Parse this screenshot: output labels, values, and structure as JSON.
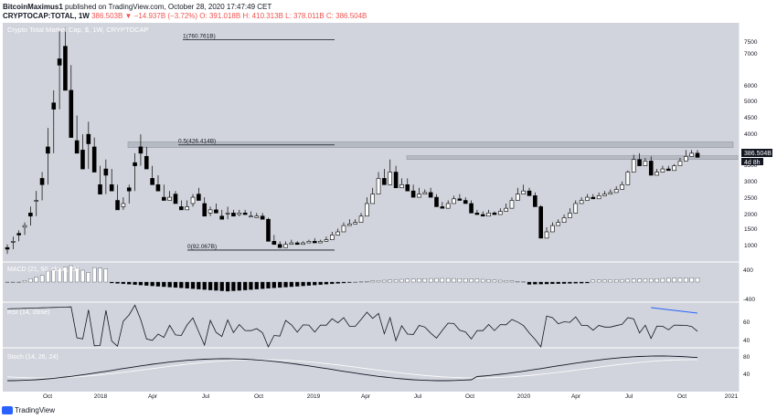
{
  "header": {
    "user": "BitcoinMaximus1",
    "published": "published on TradingView.com, October 28, 2020 17:47:49 CET",
    "symbol": "CRYPTOCAP:TOTAL, 1W",
    "change": "386.503B ▼ −14.937B (−3.72%)",
    "ohlc": "O: 391.018B H: 410.313B L: 378.011B C: 386.504B"
  },
  "footer": {
    "brand": "TradingView"
  },
  "colors": {
    "pane_bg": "#d1d4dc",
    "candle": "#000000",
    "candle_alt": "#ffffff",
    "zone": "#b2b5be",
    "rsi_trend": "#2962ff",
    "macd_pos": "#ffffff",
    "macd_neg": "#000000"
  },
  "chart_data": {
    "type": "candlestick",
    "title": "Crypto Total Market Cap, $, 1W, CRYPTOCAP",
    "price_unit": "USD",
    "y_ticks": [
      1000,
      1500,
      2000,
      2500,
      3000,
      3500,
      4000,
      4500,
      5000,
      6000,
      7000,
      7500
    ],
    "x_ticks": [
      "Oct",
      "2018",
      "Apr",
      "Jul",
      "Oct",
      "2019",
      "Apr",
      "Jul",
      "Oct",
      "2020",
      "Apr",
      "Jul",
      "Oct",
      "2021"
    ],
    "last_price_label": "386.504B",
    "countdown_label": "4d 8h",
    "fib_levels": [
      {
        "label": "1(760.761B)",
        "value": 760.761
      },
      {
        "label": "0.5(426.414B)",
        "value": 426.414
      },
      {
        "label": "0(92.067B)",
        "value": 92.067
      }
    ],
    "resistance_zones": [
      "0.5 level zone",
      "2018/2020 highs zone"
    ],
    "candles": [
      [
        0,
        100,
        80,
        95,
        110
      ],
      [
        1,
        120,
        95,
        120,
        135
      ],
      [
        2,
        145,
        120,
        140,
        155
      ],
      [
        3,
        165,
        140,
        170,
        180
      ],
      [
        4,
        210,
        170,
        200,
        230
      ],
      [
        5,
        250,
        200,
        250,
        280
      ],
      [
        6,
        320,
        250,
        300,
        340
      ],
      [
        7,
        420,
        300,
        400,
        480
      ],
      [
        8,
        560,
        400,
        540,
        600
      ],
      [
        9,
        700,
        540,
        680,
        790
      ],
      [
        10,
        740,
        680,
        600,
        800
      ],
      [
        11,
        600,
        600,
        450,
        680
      ],
      [
        12,
        440,
        450,
        400,
        520
      ],
      [
        13,
        410,
        400,
        350,
        460
      ],
      [
        14,
        460,
        350,
        430,
        500
      ],
      [
        15,
        420,
        430,
        340,
        450
      ],
      [
        16,
        300,
        340,
        270,
        360
      ],
      [
        17,
        350,
        270,
        330,
        380
      ],
      [
        18,
        300,
        330,
        280,
        350
      ],
      [
        19,
        250,
        280,
        220,
        300
      ],
      [
        20,
        230,
        220,
        240,
        260
      ],
      [
        21,
        290,
        240,
        280,
        300
      ],
      [
        22,
        370,
        280,
        360,
        400
      ],
      [
        23,
        420,
        360,
        400,
        460
      ],
      [
        24,
        390,
        400,
        350,
        420
      ],
      [
        25,
        320,
        350,
        300,
        360
      ],
      [
        26,
        300,
        300,
        280,
        330
      ],
      [
        27,
        260,
        280,
        250,
        300
      ],
      [
        28,
        250,
        250,
        260,
        280
      ],
      [
        29,
        270,
        260,
        240,
        280
      ],
      [
        30,
        230,
        240,
        220,
        250
      ],
      [
        31,
        220,
        220,
        230,
        250
      ],
      [
        32,
        240,
        230,
        260,
        270
      ],
      [
        33,
        270,
        260,
        250,
        290
      ],
      [
        34,
        240,
        250,
        200,
        260
      ],
      [
        35,
        210,
        200,
        220,
        230
      ],
      [
        36,
        220,
        220,
        210,
        240
      ],
      [
        37,
        200,
        210,
        190,
        220
      ],
      [
        38,
        210,
        190,
        210,
        230
      ],
      [
        39,
        210,
        210,
        200,
        220
      ],
      [
        40,
        205,
        200,
        210,
        220
      ],
      [
        41,
        210,
        210,
        205,
        220
      ],
      [
        42,
        200,
        205,
        200,
        215
      ],
      [
        43,
        195,
        200,
        200,
        210
      ],
      [
        44,
        200,
        200,
        190,
        210
      ],
      [
        45,
        190,
        190,
        120,
        195
      ],
      [
        46,
        120,
        120,
        110,
        140
      ],
      [
        47,
        110,
        110,
        100,
        120
      ],
      [
        48,
        100,
        100,
        110,
        120
      ],
      [
        49,
        110,
        110,
        115,
        125
      ],
      [
        50,
        115,
        115,
        110,
        120
      ],
      [
        51,
        110,
        110,
        115,
        120
      ],
      [
        52,
        115,
        115,
        120,
        125
      ],
      [
        53,
        120,
        120,
        115,
        130
      ],
      [
        54,
        115,
        115,
        120,
        125
      ],
      [
        55,
        120,
        120,
        125,
        135
      ],
      [
        56,
        125,
        125,
        140,
        150
      ],
      [
        57,
        140,
        140,
        150,
        160
      ],
      [
        58,
        150,
        150,
        170,
        180
      ],
      [
        59,
        170,
        170,
        175,
        190
      ],
      [
        60,
        175,
        175,
        180,
        190
      ],
      [
        61,
        180,
        180,
        200,
        210
      ],
      [
        62,
        200,
        200,
        240,
        260
      ],
      [
        63,
        240,
        240,
        270,
        290
      ],
      [
        64,
        270,
        270,
        320,
        340
      ],
      [
        65,
        320,
        320,
        300,
        350
      ],
      [
        66,
        300,
        300,
        340,
        380
      ],
      [
        67,
        340,
        340,
        290,
        360
      ],
      [
        68,
        290,
        290,
        300,
        320
      ],
      [
        69,
        300,
        300,
        280,
        320
      ],
      [
        70,
        280,
        280,
        260,
        300
      ],
      [
        71,
        260,
        260,
        270,
        290
      ],
      [
        72,
        270,
        270,
        275,
        285
      ],
      [
        73,
        275,
        275,
        260,
        290
      ],
      [
        74,
        260,
        260,
        230,
        270
      ],
      [
        75,
        230,
        230,
        225,
        245
      ],
      [
        76,
        225,
        225,
        240,
        250
      ],
      [
        77,
        240,
        240,
        255,
        265
      ],
      [
        78,
        255,
        255,
        250,
        270
      ],
      [
        79,
        250,
        250,
        240,
        260
      ],
      [
        80,
        240,
        240,
        210,
        250
      ],
      [
        81,
        210,
        210,
        205,
        220
      ],
      [
        82,
        205,
        205,
        200,
        215
      ],
      [
        83,
        200,
        200,
        210,
        220
      ],
      [
        84,
        210,
        210,
        205,
        215
      ],
      [
        85,
        205,
        205,
        215,
        225
      ],
      [
        86,
        215,
        215,
        225,
        240
      ],
      [
        87,
        225,
        225,
        250,
        260
      ],
      [
        88,
        250,
        250,
        270,
        290
      ],
      [
        89,
        270,
        270,
        280,
        300
      ],
      [
        90,
        280,
        280,
        265,
        290
      ],
      [
        91,
        265,
        265,
        230,
        275
      ],
      [
        92,
        230,
        230,
        130,
        235
      ],
      [
        93,
        130,
        130,
        150,
        165
      ],
      [
        94,
        150,
        150,
        170,
        180
      ],
      [
        95,
        170,
        170,
        180,
        190
      ],
      [
        96,
        180,
        180,
        195,
        205
      ],
      [
        97,
        195,
        195,
        210,
        225
      ],
      [
        98,
        210,
        210,
        240,
        250
      ],
      [
        99,
        240,
        240,
        250,
        260
      ],
      [
        100,
        250,
        250,
        260,
        270
      ],
      [
        101,
        260,
        260,
        255,
        270
      ],
      [
        102,
        255,
        255,
        265,
        275
      ],
      [
        103,
        265,
        265,
        270,
        280
      ],
      [
        104,
        270,
        270,
        275,
        285
      ],
      [
        105,
        275,
        275,
        285,
        295
      ],
      [
        106,
        285,
        285,
        300,
        310
      ],
      [
        107,
        300,
        300,
        340,
        345
      ],
      [
        108,
        340,
        340,
        380,
        395
      ],
      [
        109,
        380,
        380,
        360,
        400
      ],
      [
        110,
        360,
        360,
        375,
        385
      ],
      [
        111,
        375,
        375,
        330,
        390
      ],
      [
        112,
        330,
        330,
        340,
        350
      ],
      [
        113,
        340,
        340,
        350,
        360
      ],
      [
        114,
        350,
        350,
        345,
        360
      ],
      [
        115,
        345,
        345,
        360,
        365
      ],
      [
        116,
        360,
        360,
        375,
        385
      ],
      [
        117,
        375,
        375,
        390,
        410
      ],
      [
        118,
        390,
        390,
        400,
        410
      ],
      [
        119,
        400,
        400,
        387,
        410
      ]
    ],
    "macd": {
      "label": "MACD (21, 50, close, 21)",
      "y_ticks": [
        400,
        -400
      ]
    },
    "rsi": {
      "label": "RSI (14, close)",
      "y_ticks": [
        60.0,
        40.0
      ]
    },
    "stoch": {
      "label": "Stoch (14, 26, 24)",
      "y_ticks": [
        80.0,
        40.0
      ]
    }
  }
}
